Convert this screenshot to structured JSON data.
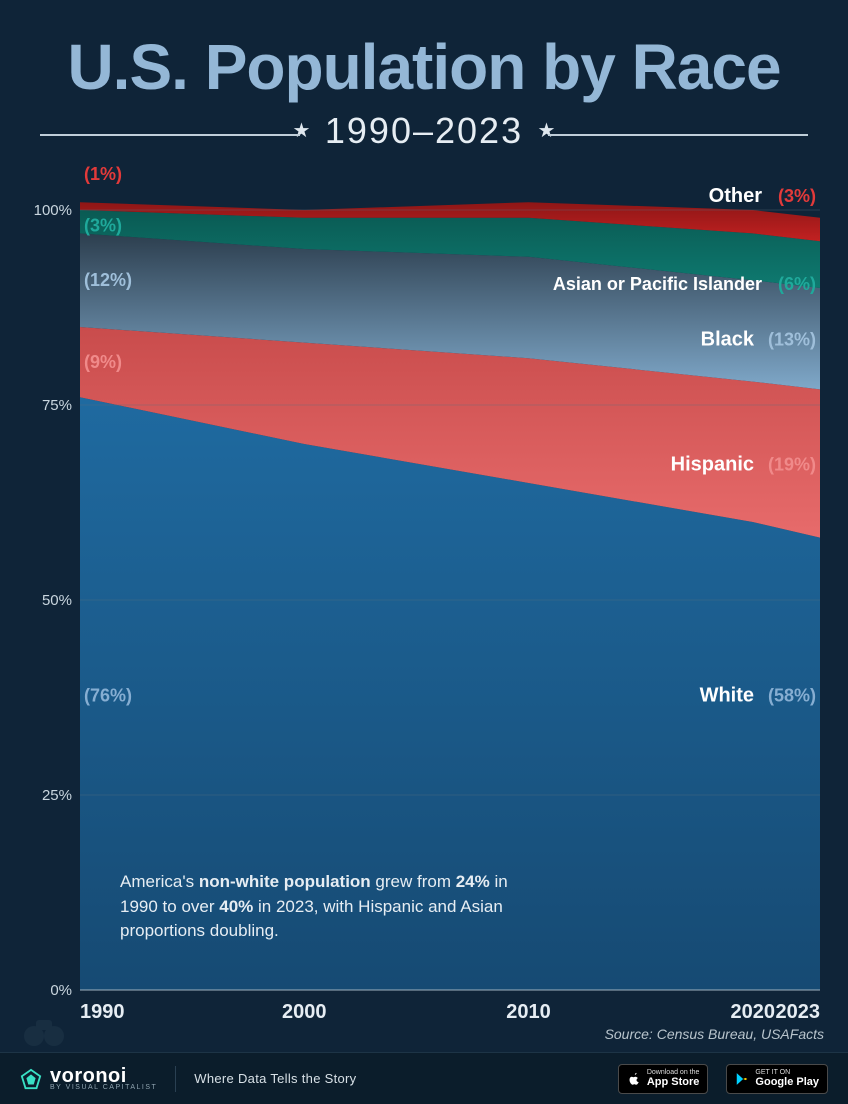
{
  "title": "U.S. Population by Race",
  "subtitle_years": "1990–2023",
  "chart": {
    "type": "stacked-area-100",
    "background_color": "#0f2438",
    "grid_color": "#5a6e7e",
    "grid_opacity": 0.35,
    "x": {
      "ticks": [
        1990,
        2000,
        2010,
        2020,
        2023
      ],
      "min": 1990,
      "max": 2023,
      "label_fontsize": 20,
      "label_color": "#e6edf3"
    },
    "y": {
      "ticks": [
        0,
        25,
        50,
        75,
        100
      ],
      "tick_labels": [
        "0%",
        "25%",
        "50%",
        "75%",
        "100%"
      ],
      "min": 0,
      "max": 100,
      "label_fontsize": 15,
      "label_color": "#c9d6df"
    },
    "series_order_bottom_to_top": [
      "white",
      "hispanic",
      "black",
      "asian_pacific",
      "other"
    ],
    "sample_years": [
      1990,
      2000,
      2010,
      2020,
      2023
    ],
    "series": {
      "white": {
        "label": "White",
        "color": "#164a73",
        "gradient_top": "#1f6aa0",
        "values": [
          76,
          70,
          65,
          60,
          58
        ],
        "label_color": "#86aed2"
      },
      "hispanic": {
        "label": "Hispanic",
        "color": "#e76b6b",
        "gradient_top": "#c94c4c",
        "values": [
          9,
          13,
          16,
          18,
          19
        ],
        "label_color": "#f08a8a"
      },
      "black": {
        "label": "Black",
        "color": "#7fa8c9",
        "gradient_top": "#2c3e4e",
        "values": [
          12,
          12,
          13,
          13,
          13
        ],
        "label_color": "#9fbfda"
      },
      "asian_pacific": {
        "label": "Asian or Pacific Islander",
        "color": "#0e7a70",
        "gradient_top": "#0a5a53",
        "values": [
          3,
          4,
          5,
          6,
          6
        ],
        "label_color": "#1fa99b"
      },
      "other": {
        "label": "Other",
        "color": "#c22121",
        "gradient_top": "#8e1616",
        "values": [
          1,
          1,
          2,
          3,
          3
        ],
        "label_color": "#e23a3a"
      }
    },
    "start_pct_fontsize": 18,
    "category_fontsize": 20,
    "end_pct_fontsize": 18
  },
  "left_labels": {
    "other": "(1%)",
    "asian_pacific": "(3%)",
    "black": "(12%)",
    "hispanic": "(9%)",
    "white": "(76%)"
  },
  "right_labels": {
    "other": {
      "name": "Other",
      "pct": "(3%)"
    },
    "asian_pacific": {
      "name": "Asian or Pacific Islander",
      "pct": "(6%)"
    },
    "black": {
      "name": "Black",
      "pct": "(13%)"
    },
    "hispanic": {
      "name": "Hispanic",
      "pct": "(19%)"
    },
    "white": {
      "name": "White",
      "pct": "(58%)"
    }
  },
  "callout": {
    "prefix": "America's ",
    "bold1": "non-white population",
    "mid1": " grew from ",
    "bold2": "24%",
    "mid2": " in 1990 to over ",
    "bold3": "40%",
    "suffix": " in 2023, with Hispanic and Asian proportions doubling."
  },
  "source": {
    "label": "Source:",
    "text": " Census Bureau, USAFacts"
  },
  "footer": {
    "brand_name": "voronoi",
    "brand_sub": "BY VISUAL CAPITALIST",
    "tagline": "Where Data Tells the Story",
    "appstore": {
      "tiny": "Download on the",
      "big": "App Store"
    },
    "playstore": {
      "tiny": "GET IT ON",
      "big": "Google Play"
    }
  }
}
